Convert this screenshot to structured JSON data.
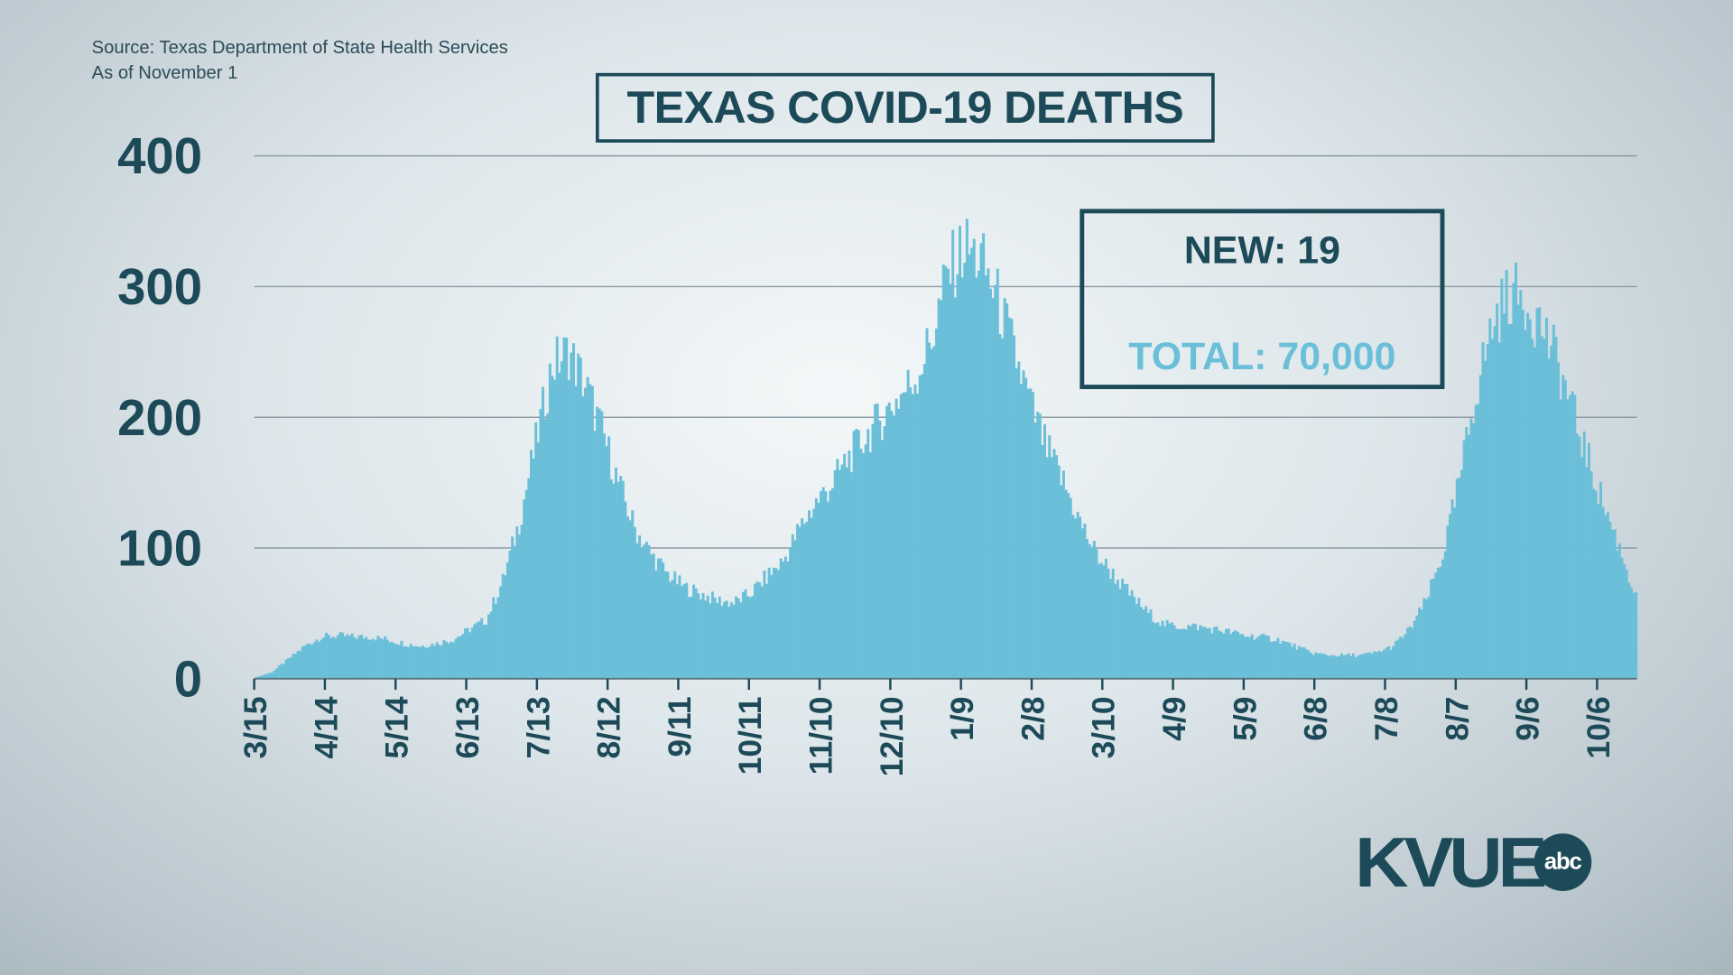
{
  "source": "Source: Texas Department of State Health Services",
  "as_of": "As of November 1",
  "info": {
    "new": "NEW: 19",
    "total": "TOTAL: 70,000"
  },
  "logo": {
    "text": "KVUE",
    "badge": "abc"
  },
  "colors": {
    "bar": "#6bbfd8",
    "text": "#1d4a58",
    "grid": "#8e9ca3"
  },
  "chart_data": {
    "type": "bar",
    "title": "TEXAS COVID-19 DEATHS",
    "xlabel": "",
    "ylabel": "",
    "ylim": [
      0,
      400
    ],
    "yticks": [
      "0",
      "100",
      "200",
      "300",
      "400"
    ],
    "grid": true,
    "xticks": [
      "3/15",
      "4/14",
      "5/14",
      "6/13",
      "7/13",
      "8/12",
      "9/11",
      "10/11",
      "11/10",
      "12/10",
      "1/9",
      "2/8",
      "3/10",
      "4/9",
      "5/9",
      "6/8",
      "7/8",
      "8/7",
      "9/6",
      "10/6"
    ],
    "series": [
      {
        "x_start": "3/15",
        "interval_days": 7,
        "values": [
          1,
          5,
          15,
          25,
          32,
          33,
          32,
          32,
          30,
          27,
          25,
          27,
          30,
          38,
          45,
          75,
          120,
          180,
          240,
          250,
          225,
          190,
          150,
          115,
          95,
          80,
          70,
          65,
          60,
          58,
          65,
          78,
          90,
          115,
          135,
          150,
          170,
          185,
          200,
          215,
          230,
          260,
          310,
          330,
          320,
          290,
          250,
          210,
          175,
          150,
          120,
          95,
          80,
          65,
          52,
          42,
          40,
          40,
          38,
          36,
          33,
          32,
          30,
          25,
          20,
          18,
          18,
          18,
          20,
          25,
          38,
          60,
          95,
          150,
          220,
          270,
          295,
          290,
          270,
          240,
          200,
          160,
          125,
          90,
          50
        ]
      }
    ]
  }
}
